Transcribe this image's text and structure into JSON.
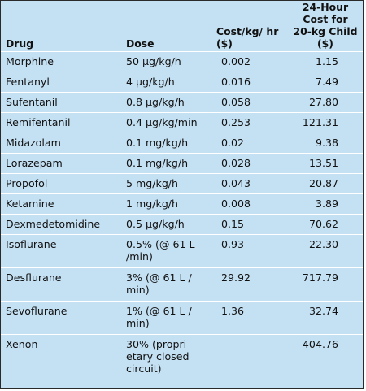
{
  "table": {
    "headers": {
      "drug": "Drug",
      "dose": "Dose",
      "cost": "Cost/kg/ hr ($)",
      "daily": "24-Hour Cost for 20-kg Child ($)"
    },
    "rows": [
      {
        "drug": "Morphine",
        "dose": "50 μg/kg/h",
        "cost": "0.002",
        "daily": "1.15"
      },
      {
        "drug": "Fentanyl",
        "dose": "4 μg/kg/h",
        "cost": "0.016",
        "daily": "7.49"
      },
      {
        "drug": "Sufentanil",
        "dose": "0.8 μg/kg/h",
        "cost": "0.058",
        "daily": "27.80"
      },
      {
        "drug": "Remifentanil",
        "dose": "0.4 μg/kg/min",
        "cost": "0.253",
        "daily": "121.31"
      },
      {
        "drug": "Midazolam",
        "dose": "0.1 mg/kg/h",
        "cost": "0.02",
        "daily": "9.38"
      },
      {
        "drug": "Lorazepam",
        "dose": "0.1 mg/kg/h",
        "cost": "0.028",
        "daily": "13.51"
      },
      {
        "drug": "Propofol",
        "dose": "5 mg/kg/h",
        "cost": "0.043",
        "daily": "20.87"
      },
      {
        "drug": "Ketamine",
        "dose": "1 mg/kg/h",
        "cost": "0.008",
        "daily": "3.89"
      },
      {
        "drug": "Dexmedetomidine",
        "dose": "0.5 μg/kg/h",
        "cost": "0.15",
        "daily": "70.62"
      },
      {
        "drug": "Isoflurane",
        "dose": "0.5% (@ 61 L /min)",
        "cost": "0.93",
        "daily": "22.30"
      },
      {
        "drug": "Desflurane",
        "dose": "3% (@ 61 L / min)",
        "cost": "29.92",
        "daily": "717.79"
      },
      {
        "drug": "Sevoflurane",
        "dose": "1% (@ 61 L / min)",
        "cost": "1.36",
        "daily": "32.74"
      },
      {
        "drug": "Xenon",
        "dose": "30% (propri- etary closed circuit)",
        "cost": "",
        "daily": "404.76"
      }
    ]
  }
}
